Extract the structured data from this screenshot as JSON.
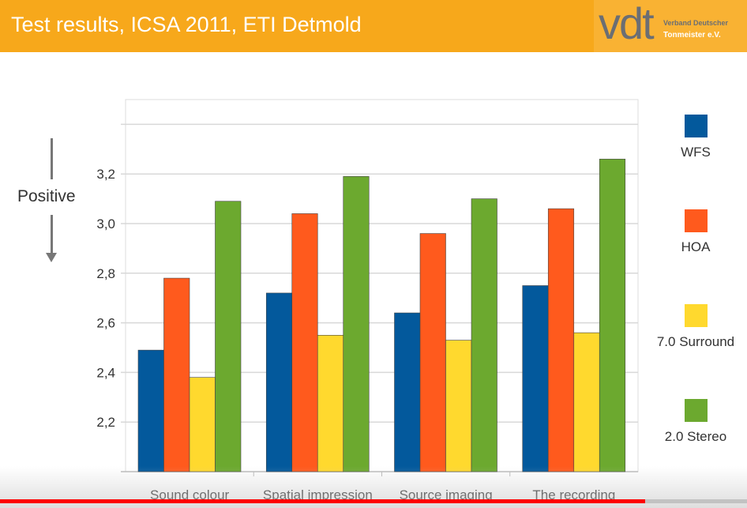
{
  "header": {
    "title": "Test results, ICSA 2011, ETI Detmold",
    "logo_text": "vdt",
    "logo_line1": "Verband Deutscher",
    "logo_line2": "Tonmeister e.V."
  },
  "annotation": "Positive",
  "video_progress": 0.864,
  "chart_data": {
    "type": "bar",
    "categories": [
      "Sound colour",
      "Spatial impression",
      "Source imaging",
      "The recording"
    ],
    "series": [
      {
        "name": "WFS",
        "color": "#03599c",
        "values": [
          2.49,
          2.72,
          2.64,
          2.75
        ]
      },
      {
        "name": "HOA",
        "color": "#ff5a1d",
        "values": [
          2.78,
          3.04,
          2.96,
          3.06
        ]
      },
      {
        "name": "7.0 Surround",
        "color": "#ffd92e",
        "values": [
          2.38,
          2.55,
          2.53,
          2.56
        ]
      },
      {
        "name": "2.0 Stereo",
        "color": "#6ca92f",
        "values": [
          3.09,
          3.19,
          3.1,
          3.26
        ]
      }
    ],
    "yticks": [
      "2,2",
      "2,4",
      "2,6",
      "2,8",
      "3,0",
      "3,2"
    ],
    "ytick_values": [
      2.2,
      2.4,
      2.6,
      2.8,
      3.0,
      3.2
    ],
    "ylim": [
      2.0,
      3.5
    ],
    "grid": true,
    "legend": "right"
  }
}
